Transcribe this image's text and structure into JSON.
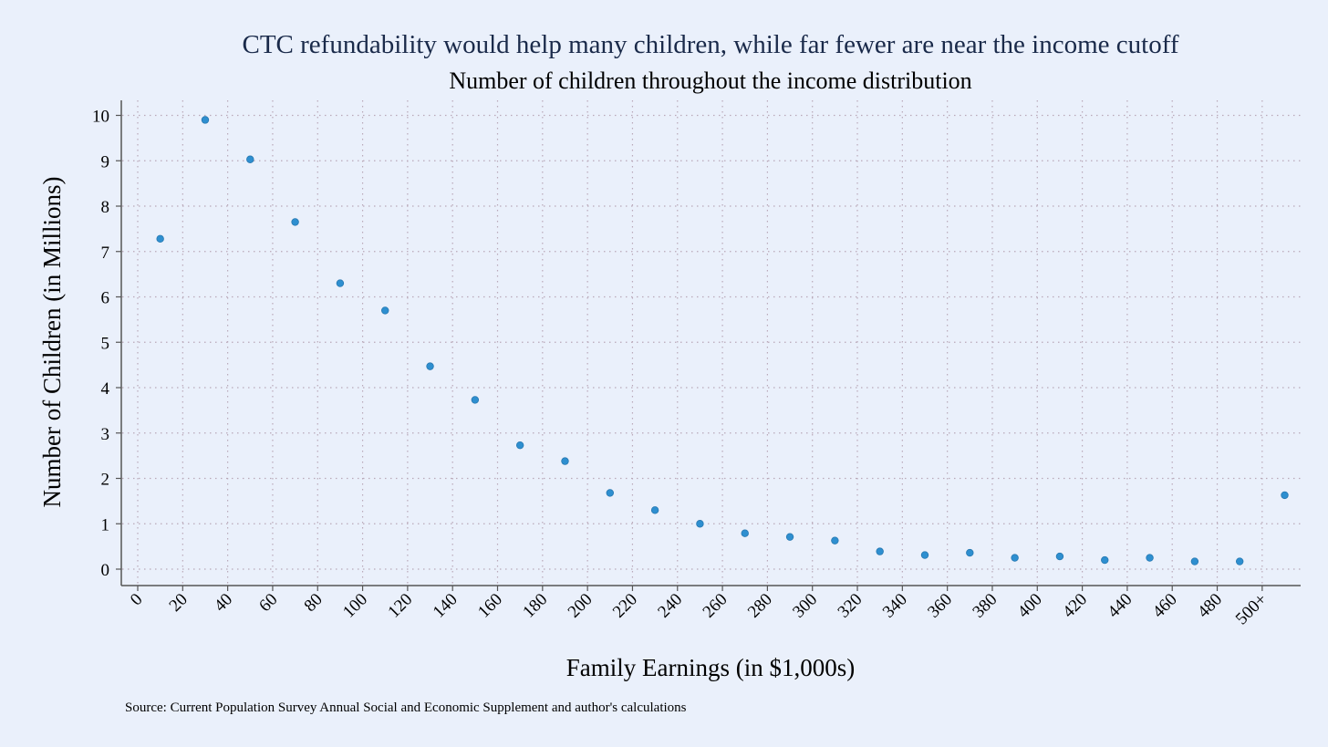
{
  "chart_data": {
    "type": "scatter",
    "title": "CTC refundability would help many children, while far fewer are near the income cutoff",
    "subtitle": "Number of children throughout the income distribution",
    "xlabel": "Family Earnings (in $1,000s)",
    "ylabel": "Number of Children (in Millions)",
    "note": "Source: Current Population Survey Annual Social and Economic Supplement and author's calculations",
    "xlim": [
      0,
      510
    ],
    "ylim": [
      0,
      10
    ],
    "grid": true,
    "x_ticks": [
      {
        "value": 0,
        "label": "0"
      },
      {
        "value": 20,
        "label": "20"
      },
      {
        "value": 40,
        "label": "40"
      },
      {
        "value": 60,
        "label": "60"
      },
      {
        "value": 80,
        "label": "80"
      },
      {
        "value": 100,
        "label": "100"
      },
      {
        "value": 120,
        "label": "120"
      },
      {
        "value": 140,
        "label": "140"
      },
      {
        "value": 160,
        "label": "160"
      },
      {
        "value": 180,
        "label": "180"
      },
      {
        "value": 200,
        "label": "200"
      },
      {
        "value": 220,
        "label": "220"
      },
      {
        "value": 240,
        "label": "240"
      },
      {
        "value": 260,
        "label": "260"
      },
      {
        "value": 280,
        "label": "280"
      },
      {
        "value": 300,
        "label": "300"
      },
      {
        "value": 320,
        "label": "320"
      },
      {
        "value": 340,
        "label": "340"
      },
      {
        "value": 360,
        "label": "360"
      },
      {
        "value": 380,
        "label": "380"
      },
      {
        "value": 400,
        "label": "400"
      },
      {
        "value": 420,
        "label": "420"
      },
      {
        "value": 440,
        "label": "440"
      },
      {
        "value": 460,
        "label": "460"
      },
      {
        "value": 480,
        "label": "480"
      },
      {
        "value": 500,
        "label": "500+"
      }
    ],
    "y_ticks": [
      0,
      1,
      2,
      3,
      4,
      5,
      6,
      7,
      8,
      9,
      10
    ],
    "series": [
      {
        "color": "#2e8fd0",
        "points": [
          {
            "x": 10,
            "y": 7.28
          },
          {
            "x": 30,
            "y": 9.9
          },
          {
            "x": 50,
            "y": 9.03
          },
          {
            "x": 70,
            "y": 7.65
          },
          {
            "x": 90,
            "y": 6.3
          },
          {
            "x": 110,
            "y": 5.7
          },
          {
            "x": 130,
            "y": 4.47
          },
          {
            "x": 150,
            "y": 3.73
          },
          {
            "x": 170,
            "y": 2.73
          },
          {
            "x": 190,
            "y": 2.38
          },
          {
            "x": 210,
            "y": 1.68
          },
          {
            "x": 230,
            "y": 1.3
          },
          {
            "x": 250,
            "y": 1.0
          },
          {
            "x": 270,
            "y": 0.79
          },
          {
            "x": 290,
            "y": 0.71
          },
          {
            "x": 310,
            "y": 0.63
          },
          {
            "x": 330,
            "y": 0.39
          },
          {
            "x": 350,
            "y": 0.31
          },
          {
            "x": 370,
            "y": 0.36
          },
          {
            "x": 390,
            "y": 0.25
          },
          {
            "x": 410,
            "y": 0.28
          },
          {
            "x": 430,
            "y": 0.2
          },
          {
            "x": 450,
            "y": 0.25
          },
          {
            "x": 470,
            "y": 0.17
          },
          {
            "x": 490,
            "y": 0.17
          },
          {
            "x": 510,
            "y": 1.63
          }
        ]
      }
    ]
  }
}
